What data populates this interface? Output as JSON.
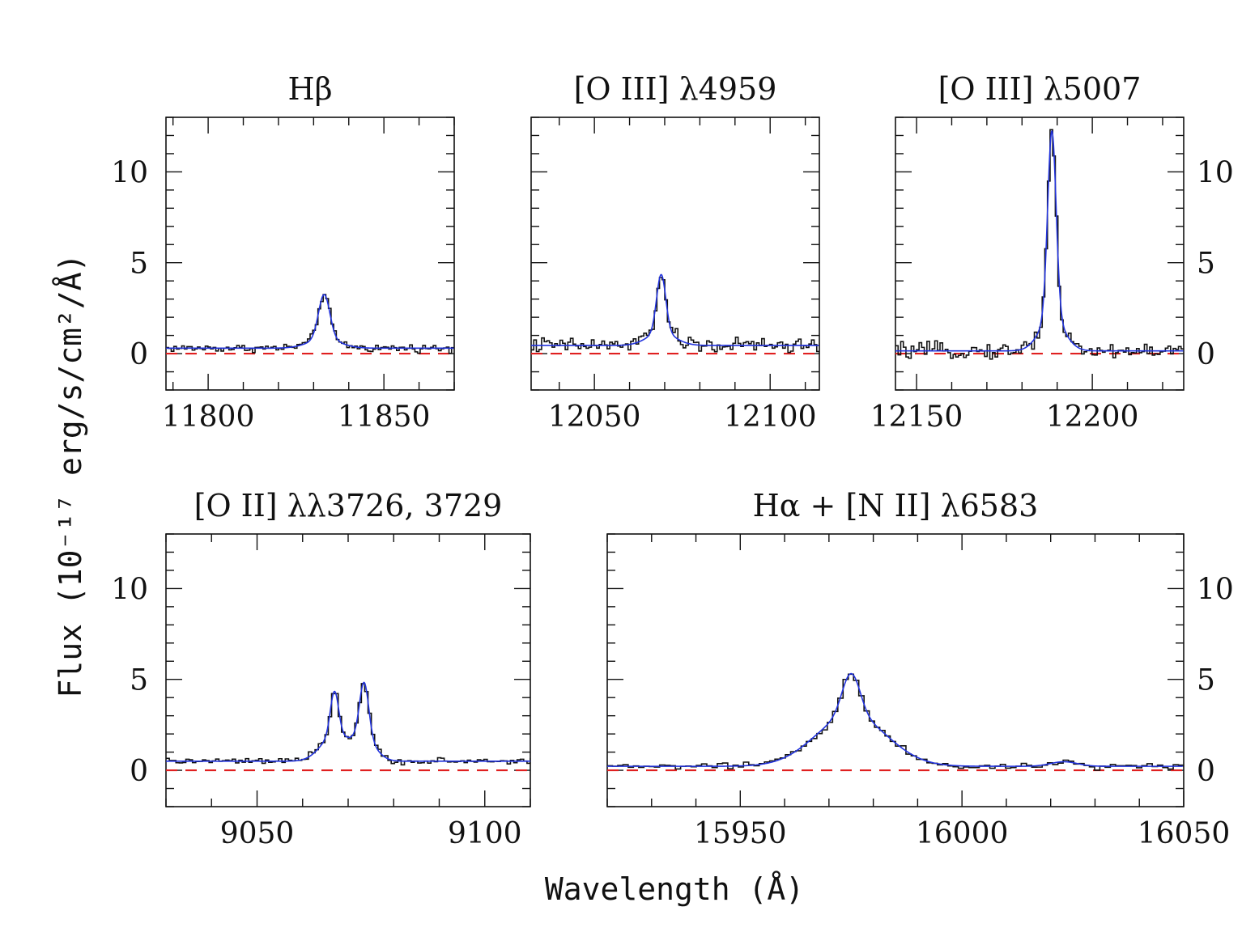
{
  "figure": {
    "xlabel": "Wavelength (Å)",
    "ylabel": "Flux (10⁻¹⁷ erg/s/cm²/Å)"
  },
  "colors": {
    "data": "#111111",
    "model": "#2233dd",
    "zero": "#e02020"
  },
  "chart_data": [
    {
      "id": "hbeta",
      "type": "line",
      "title": "Hβ",
      "xlim": [
        11788,
        11870
      ],
      "ylim": [
        -2,
        13
      ],
      "xticks": [
        11800,
        11850
      ],
      "yticks": [
        0,
        5,
        10
      ],
      "show_yticklabels": "left",
      "baseline": 0.3,
      "lines": [
        {
          "center": 11833,
          "amp": 2.45,
          "sigma": 1.6,
          "wing_amp": 0.5,
          "wing_sigma": 4.5
        }
      ],
      "noise": 0.15
    },
    {
      "id": "oiii4959",
      "type": "line",
      "title": "[O III] λ4959",
      "xlim": [
        12032,
        12114
      ],
      "ylim": [
        -2,
        13
      ],
      "xticks": [
        12050,
        12100
      ],
      "yticks": [
        0,
        5,
        10
      ],
      "show_yticklabels": "none",
      "baseline": 0.45,
      "lines": [
        {
          "center": 12069,
          "amp": 3.2,
          "sigma": 1.3,
          "wing_amp": 0.7,
          "wing_sigma": 4.0
        }
      ],
      "noise": 0.3
    },
    {
      "id": "oiii5007",
      "type": "line",
      "title": "[O III] λ5007",
      "xlim": [
        12144,
        12226
      ],
      "ylim": [
        -2,
        13
      ],
      "xticks": [
        12150,
        12200
      ],
      "yticks": [
        0,
        5,
        10
      ],
      "show_yticklabels": "right",
      "baseline": 0.15,
      "lines": [
        {
          "center": 12188.5,
          "amp": 10.3,
          "sigma": 1.2,
          "wing_amp": 1.8,
          "wing_sigma": 3.5
        }
      ],
      "noise": 0.3
    },
    {
      "id": "oii3727",
      "type": "line",
      "title": "[O II] λλ3726, 3729",
      "xlim": [
        9030,
        9110
      ],
      "ylim": [
        -2,
        13
      ],
      "xticks": [
        9050,
        9100
      ],
      "yticks": [
        0,
        5,
        10
      ],
      "show_yticklabels": "left",
      "baseline": 0.5,
      "lines": [
        {
          "center": 9067,
          "amp": 2.4,
          "sigma": 0.9,
          "wing_amp": 1.4,
          "wing_sigma": 3.0
        },
        {
          "center": 9073.5,
          "amp": 3.0,
          "sigma": 1.0,
          "wing_amp": 1.2,
          "wing_sigma": 2.5
        }
      ],
      "noise": 0.12
    },
    {
      "id": "halpha",
      "type": "line",
      "title": "Hα  +  [N II] λ6583",
      "xlim": [
        15920,
        16050
      ],
      "ylim": [
        -2,
        13
      ],
      "xticks": [
        15950,
        16000,
        16050
      ],
      "yticks": [
        0,
        5,
        10
      ],
      "show_yticklabels": "right",
      "baseline": 0.22,
      "lines": [
        {
          "center": 15975,
          "amp": 2.3,
          "sigma": 2.0,
          "wing_amp": 2.8,
          "wing_sigma": 8.0
        },
        {
          "center": 16023,
          "amp": 0.25,
          "sigma": 3.0,
          "wing_amp": 0.0,
          "wing_sigma": 1.0
        }
      ],
      "noise": 0.12
    }
  ]
}
